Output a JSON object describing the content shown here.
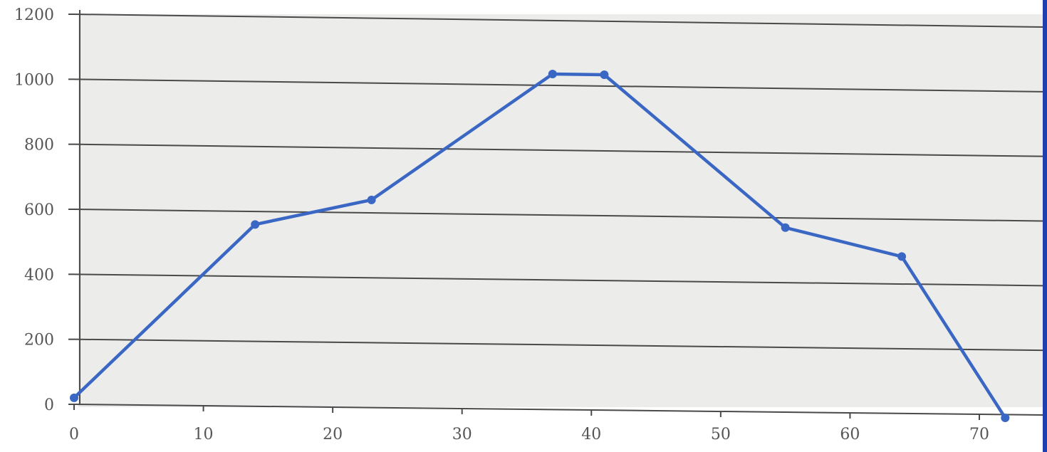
{
  "chart_data": {
    "type": "line",
    "title": "",
    "xlabel": "",
    "ylabel": "",
    "xlim": [
      0,
      75
    ],
    "ylim": [
      0,
      1200
    ],
    "x_ticks": [
      0,
      10,
      20,
      30,
      40,
      50,
      60,
      70
    ],
    "y_ticks": [
      0,
      200,
      400,
      600,
      800,
      1000,
      1200
    ],
    "grid": true,
    "legend": "none",
    "colors": {
      "background": "#ececea",
      "series": "#3a66c4",
      "grid": "#4a4a4a",
      "tick_text": "#555555"
    },
    "series": [
      {
        "x": [
          0,
          14,
          23,
          37,
          41,
          55,
          64,
          72
        ],
        "y": [
          20,
          560,
          640,
          1035,
          1035,
          570,
          485,
          -10
        ]
      }
    ]
  }
}
